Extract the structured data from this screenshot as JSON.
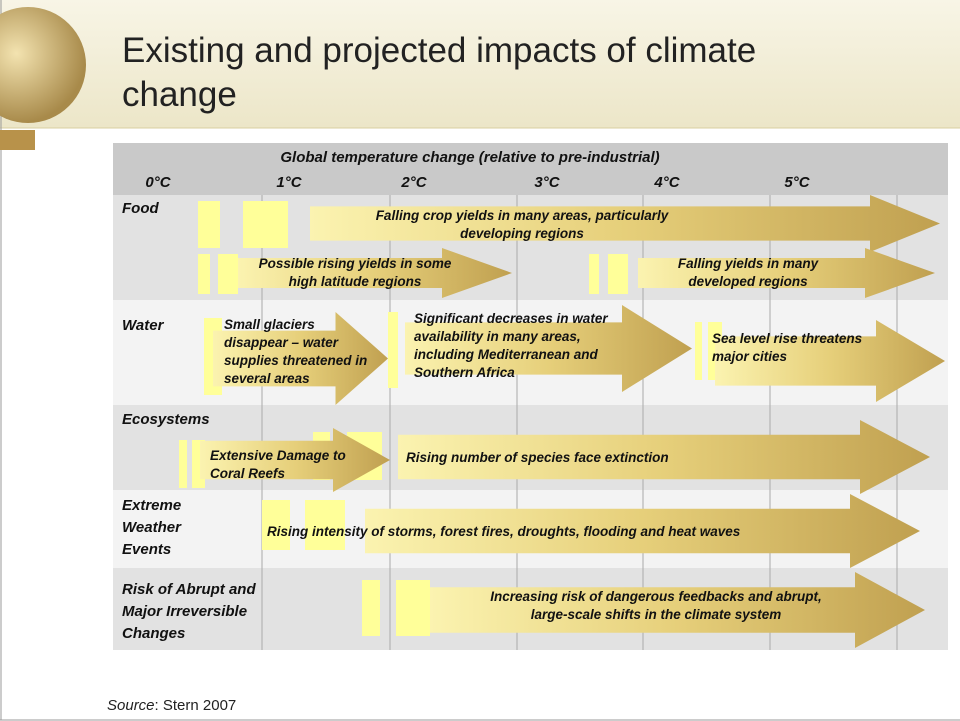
{
  "title_lines": [
    "Existing and projected impacts of climate",
    "change"
  ],
  "diagram": {
    "header": "Global temperature change (relative to pre-industrial)",
    "temperatures": [
      "0°C",
      "1°C",
      "2°C",
      "3°C",
      "4°C",
      "5°C"
    ],
    "rows": [
      {
        "label_lines": [
          "Food"
        ],
        "arrows": [
          {
            "lines": [
              "Falling crop yields in many areas, particularly",
              "developing regions"
            ]
          },
          {
            "lines": [
              "Possible rising yields in some",
              "high latitude regions"
            ]
          },
          {
            "lines": [
              "Falling yields in many",
              "developed regions"
            ]
          }
        ]
      },
      {
        "label_lines": [
          "Water"
        ],
        "arrows": [
          {
            "lines": [
              "Small glaciers",
              "disappear  – water",
              "supplies threatened in",
              "several areas"
            ]
          },
          {
            "lines": [
              "Significant decreases in water",
              "availability in many areas,",
              "including Mediterranean and",
              "Southern Africa"
            ]
          },
          {
            "lines": [
              "Sea level rise threatens",
              "major cities"
            ]
          }
        ]
      },
      {
        "label_lines": [
          "Ecosystems"
        ],
        "arrows": [
          {
            "lines": [
              "Extensive Damage to",
              "Coral Reefs"
            ]
          },
          {
            "lines": [
              "Rising number of species face extinction"
            ]
          }
        ]
      },
      {
        "label_lines": [
          "Extreme",
          "Weather",
          "Events"
        ],
        "arrows": [
          {
            "lines": [
              "Rising intensity of storms, forest fires, droughts, flooding and heat waves"
            ]
          }
        ]
      },
      {
        "label_lines": [
          "Risk of Abrupt and",
          "Major Irreversible",
          "Changes"
        ],
        "arrows": [
          {
            "lines": [
              "Increasing risk of dangerous feedbacks and abrupt,",
              "large-scale shifts in the climate system"
            ]
          }
        ]
      }
    ]
  },
  "source": {
    "label": "Source",
    "text": ": Stern 2007"
  }
}
